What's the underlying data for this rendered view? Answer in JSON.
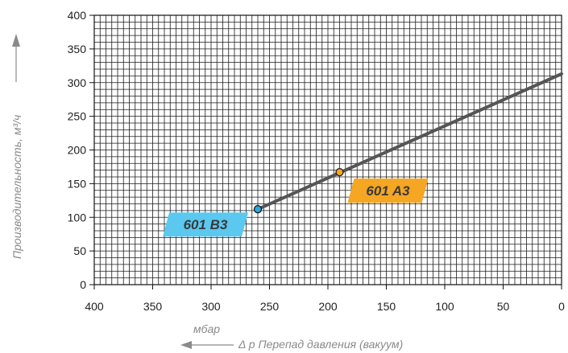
{
  "chart_data": {
    "type": "line",
    "x_reversed": true,
    "xlim": [
      0,
      400
    ],
    "ylim": [
      0,
      400
    ],
    "x_ticks": [
      400,
      350,
      300,
      250,
      200,
      150,
      100,
      50,
      0
    ],
    "y_ticks": [
      0,
      50,
      100,
      150,
      200,
      250,
      300,
      350,
      400
    ],
    "x_minor_step": 5,
    "y_minor_step": 10,
    "grid": true,
    "xlabel_unit": "мбар",
    "xlabel": "Δ p Перепад давления (вакуум)",
    "ylabel": "Производительность, м³/ч",
    "line": {
      "points": [
        [
          260,
          112
        ],
        [
          0,
          313
        ]
      ],
      "color": "#555555"
    },
    "markers": [
      {
        "name": "601 A3",
        "x": 190,
        "y": 167,
        "color": "#f5a623",
        "label_color": "#f5a623"
      },
      {
        "name": "601 B3",
        "x": 260,
        "y": 112,
        "color": "#29a8e0",
        "label_color": "#5bc8f0"
      }
    ]
  }
}
